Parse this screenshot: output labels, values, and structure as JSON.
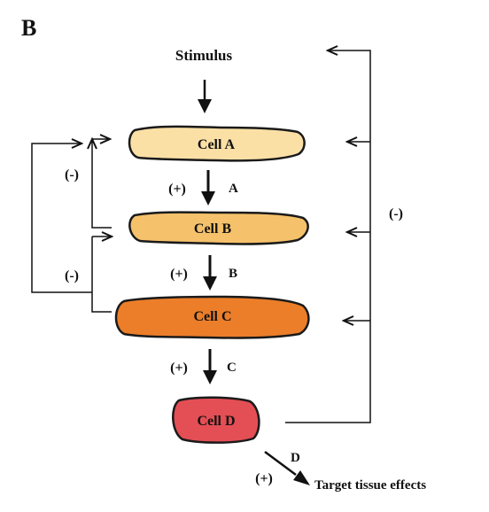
{
  "panel_label": "B",
  "stimulus": "Stimulus",
  "cells": {
    "a": {
      "label": "Cell A",
      "color": "#fbe0a6"
    },
    "b": {
      "label": "Cell B",
      "color": "#f5c16b"
    },
    "c": {
      "label": "Cell C",
      "color": "#ec7e2a"
    },
    "d": {
      "label": "Cell D",
      "color": "#e44e55"
    }
  },
  "signals": {
    "a": {
      "sign": "(+)",
      "label": "A"
    },
    "b": {
      "sign": "(+)",
      "label": "B"
    },
    "c": {
      "sign": "(+)",
      "label": "C"
    },
    "d": {
      "sign": "(+)",
      "label": "D"
    }
  },
  "feedback": {
    "short_loop_1": "(-)",
    "short_loop_2": "(-)",
    "long_loop": "(-)"
  },
  "target": "Target tissue effects"
}
